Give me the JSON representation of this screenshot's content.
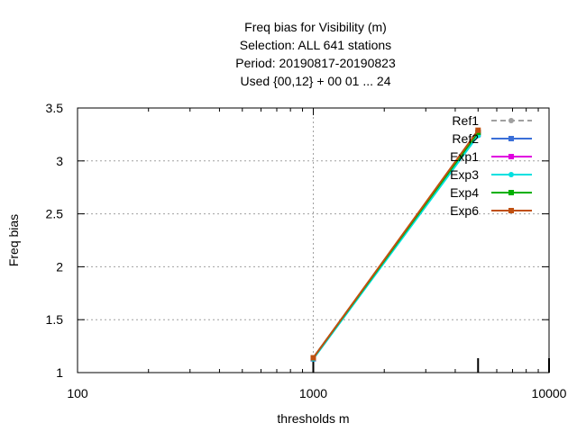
{
  "chart_data": {
    "type": "line",
    "title_lines": [
      "Freq bias  for Visibility (m)",
      "Selection: ALL    641 stations",
      "Period: 20190817-20190823",
      "Used {00,12} + 00 01 ... 24"
    ],
    "xlabel": "thresholds m",
    "ylabel": "Freq bias",
    "x_scale": "log",
    "xlim": [
      100,
      10000
    ],
    "ylim": [
      1,
      3.5
    ],
    "x_ticks": [
      100,
      1000,
      10000
    ],
    "x_tick_labels": [
      "100",
      "1000",
      "10000"
    ],
    "y_ticks": [
      1,
      1.5,
      2,
      2.5,
      3,
      3.5
    ],
    "y_tick_labels": [
      "1",
      "1.5",
      "2",
      "2.5",
      "3",
      "3.5"
    ],
    "grid": true,
    "legend_position": "top-right",
    "series": [
      {
        "name": "Ref1",
        "color": "#a0a0a0",
        "marker": "circle",
        "dashed": true,
        "x": [
          1000,
          5000
        ],
        "y": [
          1.14,
          3.28
        ]
      },
      {
        "name": "Ref2",
        "color": "#3a6fd8",
        "marker": "square",
        "dashed": false,
        "x": [
          1000,
          5000
        ],
        "y": [
          1.13,
          3.25
        ]
      },
      {
        "name": "Exp1",
        "color": "#e000e0",
        "marker": "square",
        "dashed": false,
        "x": [
          1000,
          5000
        ],
        "y": [
          1.14,
          3.27
        ]
      },
      {
        "name": "Exp3",
        "color": "#00e0e0",
        "marker": "circle",
        "dashed": false,
        "x": [
          1000,
          5000
        ],
        "y": [
          1.13,
          3.24
        ]
      },
      {
        "name": "Exp4",
        "color": "#00b000",
        "marker": "square",
        "dashed": false,
        "x": [
          1000,
          5000
        ],
        "y": [
          1.14,
          3.27
        ]
      },
      {
        "name": "Exp6",
        "color": "#c05010",
        "marker": "square",
        "dashed": false,
        "x": [
          1000,
          5000
        ],
        "y": [
          1.14,
          3.29
        ]
      }
    ],
    "sample_count_bars": [
      {
        "x": 1000,
        "relative_height": 1.0
      },
      {
        "x": 5000,
        "relative_height": 1.0
      },
      {
        "x": 10000,
        "relative_height": 1.0
      }
    ]
  }
}
